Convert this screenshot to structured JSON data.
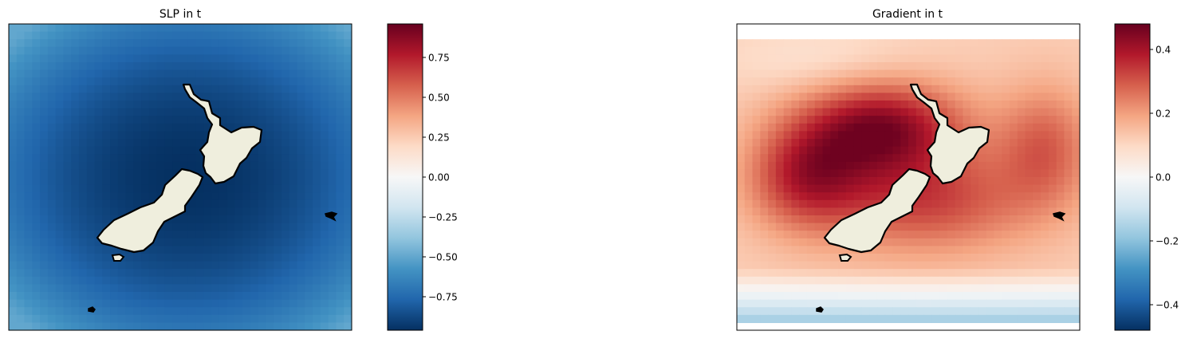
{
  "chart_data": [
    {
      "type": "heatmap",
      "title": "SLP in t",
      "xlabel": "",
      "ylabel": "",
      "colormap": "RdBu_r",
      "colorbar": {
        "range": [
          -0.96,
          0.96
        ],
        "ticks": [
          -0.75,
          -0.5,
          -0.25,
          0.0,
          0.25,
          0.5,
          0.75
        ],
        "tick_labels": [
          "−0.75",
          "−0.50",
          "−0.25",
          "0.00",
          "0.25",
          "0.50",
          "0.75"
        ]
      },
      "field": {
        "description": "radial field, minimum near centre of land",
        "center_value": -0.96,
        "edge_value": -0.5
      },
      "land_color": "#efeedd",
      "coast_color": "#000000"
    },
    {
      "type": "heatmap",
      "title": "Gradient in t",
      "xlabel": "",
      "ylabel": "",
      "colormap": "RdBu_r",
      "colorbar": {
        "range": [
          -0.48,
          0.48
        ],
        "ticks": [
          -0.4,
          -0.2,
          0.0,
          0.2,
          0.4
        ],
        "tick_labels": [
          "−0.4",
          "−0.2",
          "0.0",
          "0.2",
          "0.4"
        ]
      },
      "field": {
        "description": "positive band over land, max ~0.45 north-west of North Island, negative (~-0.2) at southern edge"
      },
      "land_color": "#efeedd",
      "coast_color": "#000000"
    }
  ]
}
